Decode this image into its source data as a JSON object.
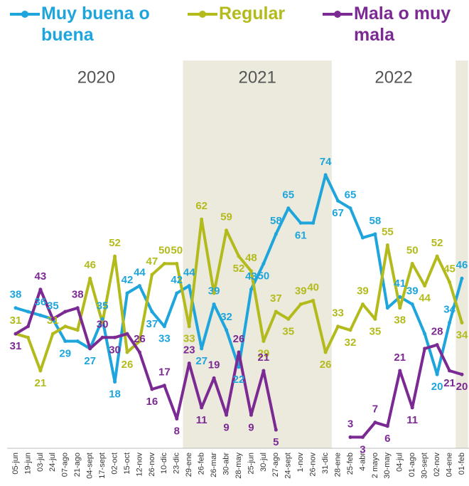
{
  "chart_data": {
    "type": "line",
    "categories": [
      "05-jun",
      "19-jun",
      "03-jul",
      "24-jul",
      "07-ago",
      "21-ago",
      "04-sept",
      "17-sept",
      "02-oct",
      "15-oct",
      "12-nov",
      "26-nov",
      "10-dic",
      "23-dic",
      "29-ene",
      "26-feb",
      "26-mar",
      "30-abr",
      "28-may",
      "25-jun",
      "30-jul",
      "27-ago",
      "24-sept",
      "1-nov",
      "26-nov",
      "31-dic",
      "28-ene",
      "25-feb",
      "4-abr",
      "2 mayo",
      "30-may",
      "04-jul",
      "01-ago",
      "30-sept",
      "02-nov",
      "04-ene",
      "01-feb"
    ],
    "periods": [
      {
        "label": "2020",
        "start": 0,
        "end": 13,
        "shaded": false
      },
      {
        "label": "2021",
        "start": 14,
        "end": 25,
        "shaded": true
      },
      {
        "label": "2022",
        "start": 26,
        "end": 35,
        "shaded": false
      },
      {
        "start": 36,
        "end": 36,
        "shaded": true
      }
    ],
    "ylim": [
      0,
      105
    ],
    "series": [
      {
        "name": "Muy buena o buena",
        "color": "#1ea5dc",
        "values": [
          38,
          37,
          36,
          35,
          29,
          29,
          27,
          35,
          18,
          42,
          44,
          37,
          33,
          42,
          44,
          27,
          39,
          32,
          22,
          43,
          50,
          58,
          65,
          61,
          61,
          74,
          67,
          65,
          57,
          58,
          38,
          41,
          39,
          31,
          20,
          34,
          46
        ],
        "value_labels": [
          "38",
          null,
          "36",
          "35",
          "29",
          null,
          "27",
          "35",
          "18",
          "42",
          "44",
          "37",
          "33",
          "42",
          "44",
          "27",
          "39",
          "32",
          "22",
          "43",
          "50",
          "58",
          "65",
          "61",
          null,
          "74",
          "67",
          "65",
          null,
          "58",
          null,
          "41",
          "39",
          null,
          "20",
          "34",
          "46"
        ]
      },
      {
        "name": "Regular",
        "color": "#b3bb1c",
        "values": [
          31,
          30,
          21,
          31,
          33,
          32,
          46,
          34,
          52,
          26,
          29,
          47,
          50,
          50,
          33,
          62,
          42,
          59,
          52,
          48,
          29,
          37,
          35,
          39,
          40,
          26,
          33,
          32,
          39,
          35,
          55,
          38,
          50,
          44,
          52,
          45,
          34
        ],
        "value_labels": [
          "31",
          null,
          "21",
          "31",
          null,
          null,
          "46",
          null,
          "52",
          "26",
          null,
          "47",
          "50",
          "50",
          "33",
          "62",
          null,
          "59",
          "52",
          "48",
          "29",
          "37",
          "35",
          "39",
          "40",
          "26",
          "33",
          "32",
          "39",
          "35",
          "55",
          "38",
          "50",
          "44",
          "52",
          "45",
          "34"
        ]
      },
      {
        "name": "Mala o muy mala",
        "color": "#7b2a93",
        "values": [
          31,
          33,
          43,
          35,
          37,
          38,
          27,
          30,
          30,
          31,
          26,
          16,
          17,
          8,
          23,
          11,
          19,
          9,
          26,
          9,
          21,
          5,
          null,
          null,
          null,
          null,
          null,
          3,
          3,
          7,
          6,
          21,
          11,
          27,
          28,
          21,
          20
        ],
        "value_labels": [
          "31",
          null,
          "43",
          null,
          null,
          "38",
          null,
          "30",
          "30",
          null,
          "26",
          "16",
          "17",
          "8",
          "23",
          "11",
          "19",
          "9",
          "26",
          "9",
          "21",
          "5",
          null,
          null,
          null,
          null,
          null,
          "3",
          "3",
          "7",
          "6",
          "21",
          "11",
          null,
          "28",
          "21",
          "20"
        ]
      }
    ]
  }
}
